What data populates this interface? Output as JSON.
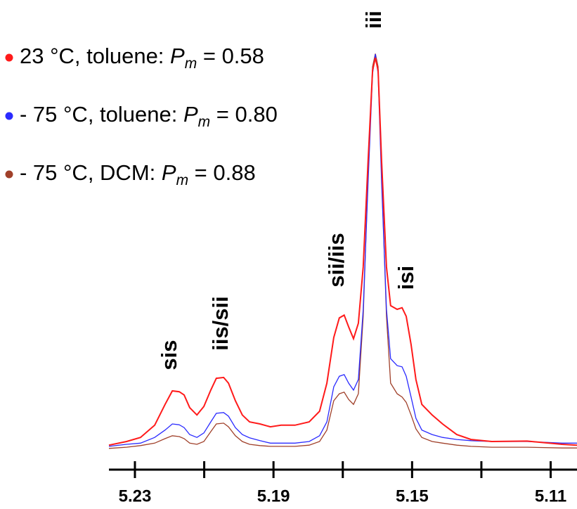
{
  "chart_data": {
    "type": "line",
    "x": [
      5.2375,
      5.2324,
      5.2284,
      5.2243,
      5.2213,
      5.2192,
      5.2172,
      5.2158,
      5.2142,
      5.2121,
      5.2101,
      5.2081,
      5.2065,
      5.2044,
      5.203,
      5.201,
      5.199,
      5.1969,
      5.1939,
      5.1909,
      5.1878,
      5.1838,
      5.1797,
      5.1767,
      5.1746,
      5.1726,
      5.171,
      5.1696,
      5.1683,
      5.1669,
      5.1655,
      5.1641,
      5.1627,
      5.1614,
      5.1606,
      5.1598,
      5.1588,
      5.1574,
      5.1562,
      5.1543,
      5.1529,
      5.1517,
      5.1503,
      5.1489,
      5.1472,
      5.1442,
      5.1412,
      5.1371,
      5.133,
      5.127,
      5.1168,
      5.1067,
      5.1024
    ],
    "series": [
      {
        "name": "23 °C, toluene: Pm = 0.58",
        "color": "#ff1a1a",
        "values": [
          2.9,
          3.8,
          4.8,
          7.8,
          12.9,
          16.2,
          16.0,
          15.2,
          12.1,
          10.3,
          12.4,
          16.4,
          19.3,
          19.5,
          18.1,
          13.8,
          10.3,
          8.6,
          8.1,
          7.4,
          7.8,
          7.8,
          8.6,
          11.2,
          18.1,
          29.3,
          34.1,
          34.8,
          31.9,
          29.0,
          32.8,
          46.6,
          72.4,
          94.8,
          97.9,
          94.8,
          72.4,
          46.6,
          37.1,
          36.2,
          36.6,
          34.5,
          27.6,
          19.0,
          12.9,
          10.3,
          8.1,
          5.5,
          4.3,
          3.8,
          3.9,
          3.1,
          2.9
        ]
      },
      {
        "name": "- 75 °C, toluene: Pm = 0.80",
        "color": "#2b2bff",
        "values": [
          2.6,
          3.1,
          3.4,
          4.8,
          6.6,
          8.1,
          7.9,
          7.2,
          5.5,
          4.8,
          5.9,
          8.6,
          10.7,
          10.9,
          10.0,
          7.2,
          5.5,
          4.7,
          4.0,
          3.4,
          3.4,
          3.4,
          3.8,
          5.2,
          8.6,
          17.2,
          19.8,
          20.2,
          18.1,
          16.4,
          19.0,
          36.2,
          67.2,
          94.0,
          98.8,
          94.0,
          67.2,
          36.2,
          24.1,
          22.4,
          22.1,
          19.8,
          14.7,
          9.5,
          6.6,
          5.5,
          4.8,
          4.3,
          4.0,
          3.8,
          3.8,
          3.4,
          3.4
        ]
      },
      {
        "name": "- 75 °C, DCM: Pm = 0.88",
        "color": "#a0402a",
        "values": [
          2.1,
          2.4,
          2.8,
          3.4,
          4.5,
          5.2,
          5.0,
          4.5,
          3.4,
          3.1,
          3.8,
          6.2,
          8.1,
          8.3,
          7.4,
          5.2,
          3.8,
          3.1,
          2.8,
          2.6,
          2.6,
          2.6,
          2.9,
          3.8,
          6.6,
          13.8,
          15.5,
          15.9,
          14.1,
          12.9,
          15.5,
          34.5,
          69.0,
          95.7,
          98.9,
          95.7,
          69.0,
          34.5,
          18.1,
          15.5,
          14.7,
          13.4,
          10.3,
          6.9,
          4.8,
          3.8,
          3.4,
          2.9,
          2.6,
          2.4,
          2.4,
          2.2,
          2.2
        ]
      }
    ],
    "xlim": [
      5.2375,
      5.1024
    ],
    "xticks": [
      5.23,
      {
        "value": 5.21,
        "label": null
      },
      5.19,
      {
        "value": 5.17,
        "label": null
      },
      5.15,
      {
        "value": 5.13,
        "label": null
      },
      5.11
    ],
    "ylim": [
      0,
      100
    ],
    "annotations": [
      "sis",
      "iis/sii",
      "sii/iis",
      "isi",
      "iii"
    ]
  }
}
